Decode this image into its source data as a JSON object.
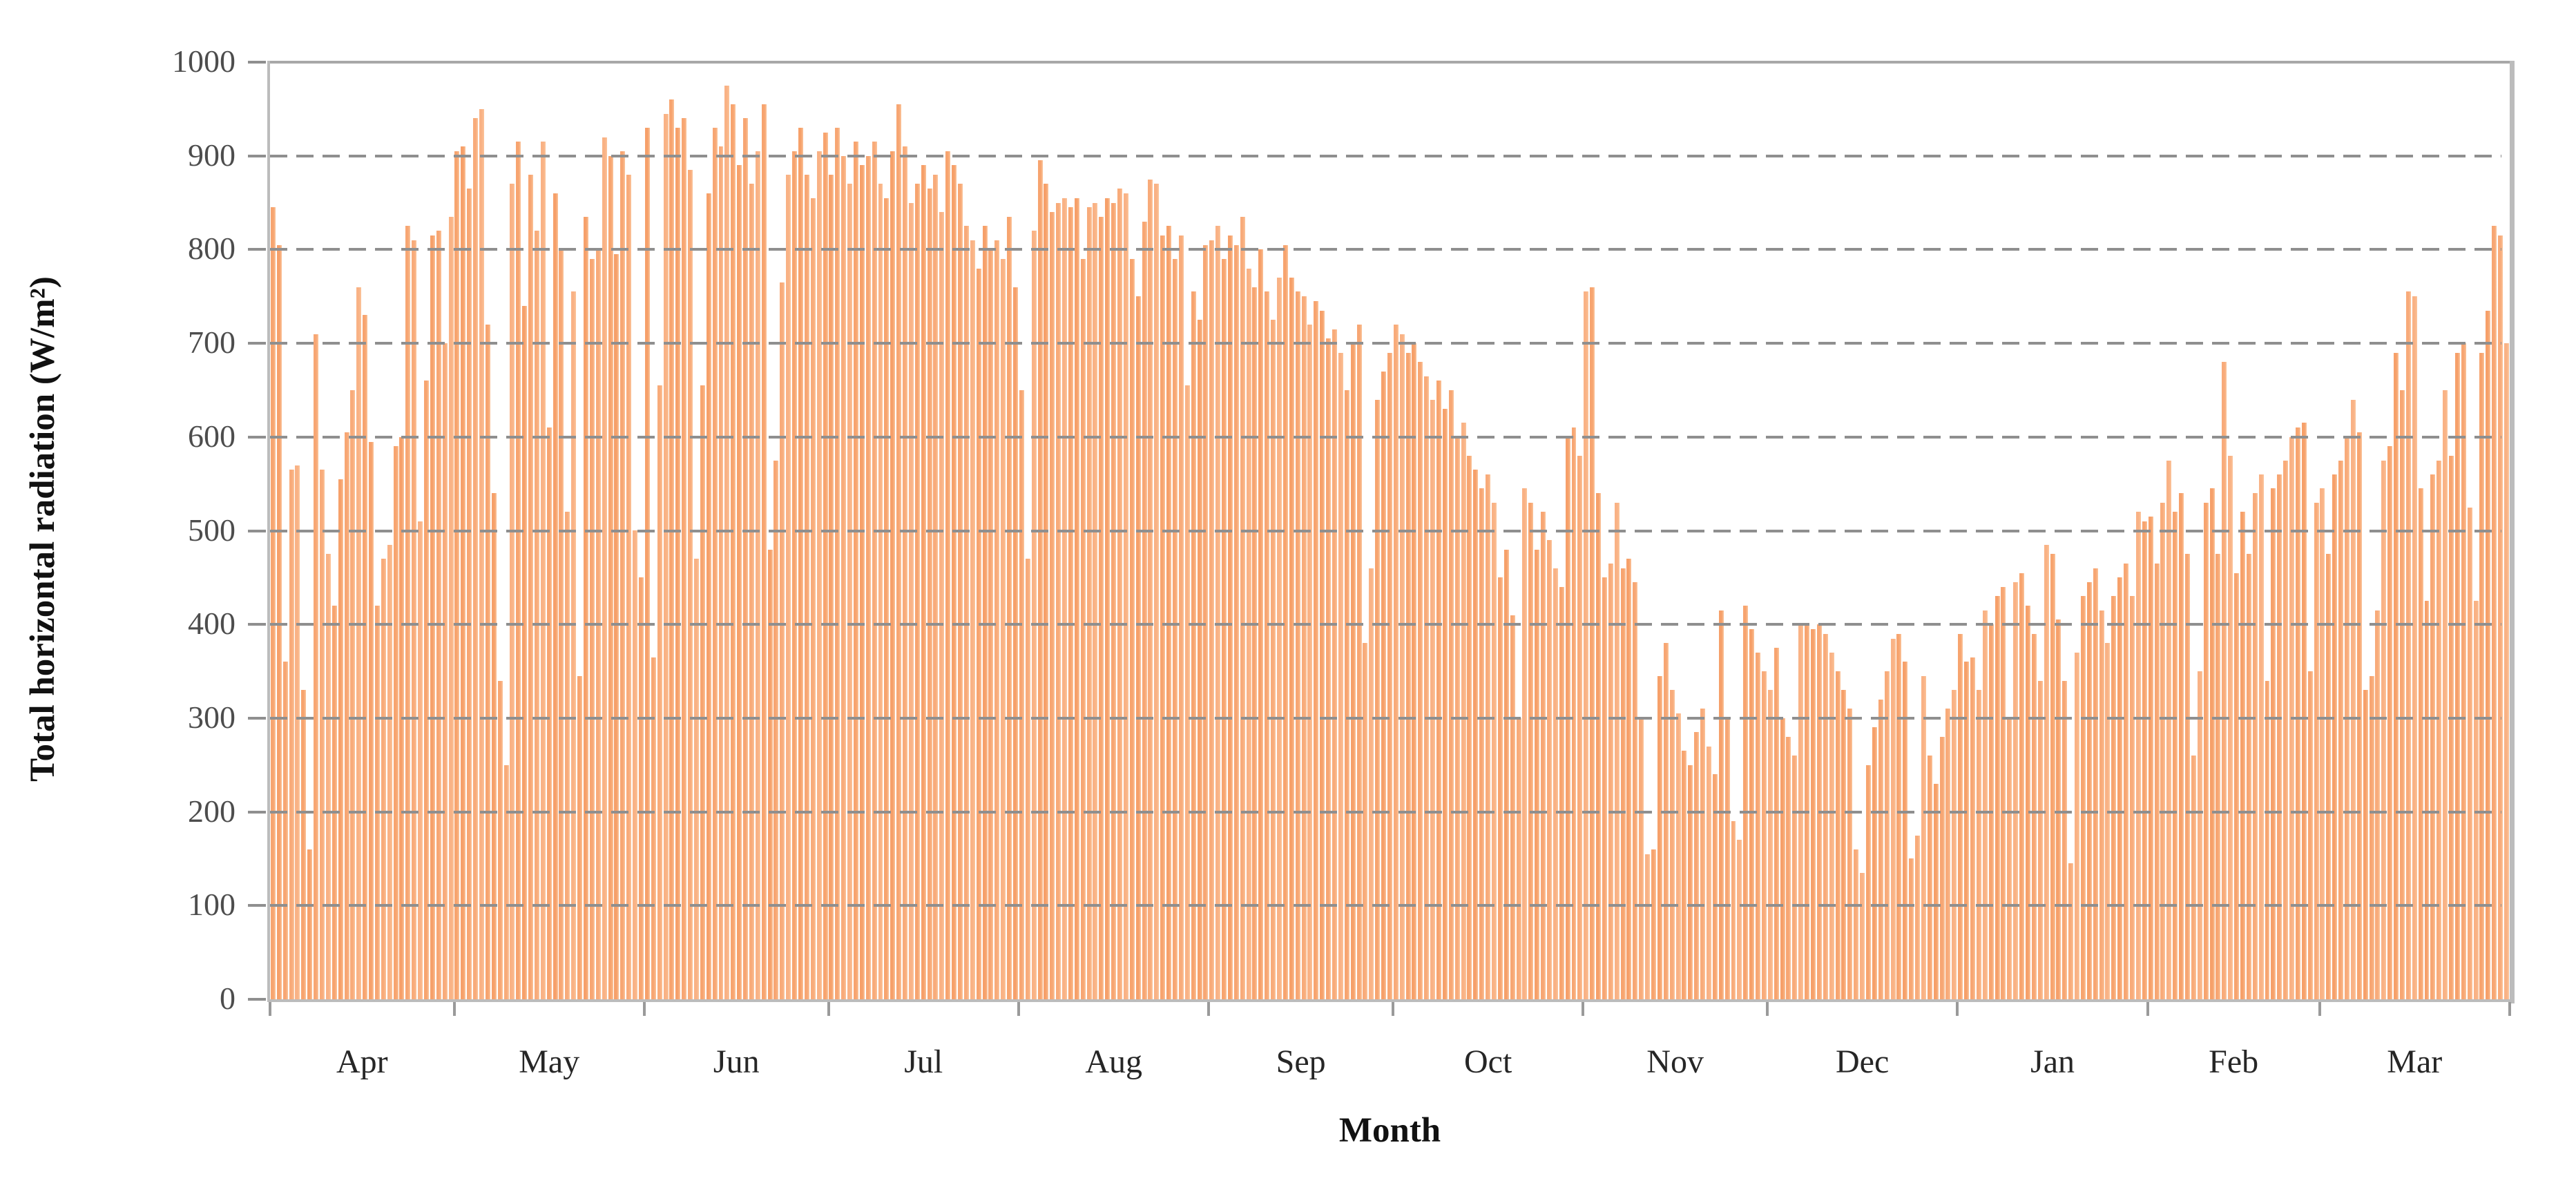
{
  "chart_data": {
    "type": "bar",
    "title": "",
    "xlabel": "Month",
    "ylabel": "Total horizontal radiation (W/m²)",
    "ylim": [
      0,
      1000
    ],
    "y_ticks": [
      0,
      100,
      200,
      300,
      400,
      500,
      600,
      700,
      800,
      900,
      1000
    ],
    "grid": "horizontal-dashed-overlay",
    "legend_position": "none",
    "bar_color": "#f7a470",
    "bar_color_light": "#fbc49b",
    "axis_color": "#bcbcbc",
    "grid_color": "#8f8f8f",
    "months": [
      {
        "label": "Apr",
        "days": 30
      },
      {
        "label": "May",
        "days": 31
      },
      {
        "label": "Jun",
        "days": 30
      },
      {
        "label": "Jul",
        "days": 31
      },
      {
        "label": "Aug",
        "days": 31
      },
      {
        "label": "Sep",
        "days": 30
      },
      {
        "label": "Oct",
        "days": 31
      },
      {
        "label": "Nov",
        "days": 30
      },
      {
        "label": "Dec",
        "days": 31
      },
      {
        "label": "Jan",
        "days": 31
      },
      {
        "label": "Feb",
        "days": 28
      },
      {
        "label": "Mar",
        "days": 31
      }
    ],
    "series_name": "Daily total horizontal radiation (W/m²)",
    "values": [
      845,
      805,
      360,
      565,
      570,
      330,
      160,
      710,
      565,
      475,
      420,
      555,
      605,
      650,
      760,
      730,
      595,
      420,
      470,
      485,
      590,
      600,
      825,
      810,
      510,
      660,
      815,
      820,
      700,
      835,
      905,
      910,
      865,
      940,
      950,
      720,
      540,
      340,
      250,
      870,
      915,
      740,
      880,
      820,
      915,
      610,
      860,
      800,
      520,
      755,
      345,
      835,
      790,
      800,
      920,
      900,
      795,
      905,
      880,
      500,
      450,
      930,
      365,
      655,
      945,
      960,
      930,
      940,
      885,
      470,
      655,
      860,
      930,
      910,
      975,
      955,
      890,
      940,
      870,
      905,
      955,
      480,
      575,
      765,
      880,
      905,
      930,
      880,
      855,
      905,
      925,
      880,
      930,
      900,
      870,
      915,
      890,
      900,
      915,
      870,
      855,
      905,
      955,
      910,
      850,
      870,
      890,
      865,
      880,
      840,
      905,
      890,
      870,
      825,
      810,
      780,
      825,
      800,
      810,
      790,
      835,
      760,
      650,
      470,
      820,
      895,
      870,
      840,
      850,
      855,
      845,
      855,
      790,
      845,
      850,
      835,
      855,
      850,
      865,
      860,
      790,
      750,
      830,
      875,
      870,
      815,
      825,
      790,
      815,
      655,
      755,
      725,
      805,
      810,
      825,
      790,
      815,
      805,
      835,
      780,
      760,
      800,
      755,
      725,
      770,
      805,
      770,
      755,
      750,
      720,
      745,
      735,
      705,
      715,
      690,
      650,
      700,
      720,
      380,
      460,
      640,
      670,
      690,
      720,
      710,
      690,
      700,
      680,
      665,
      640,
      660,
      630,
      650,
      600,
      615,
      580,
      565,
      545,
      560,
      530,
      450,
      480,
      410,
      300,
      545,
      530,
      480,
      520,
      490,
      460,
      440,
      600,
      610,
      580,
      755,
      760,
      540,
      450,
      465,
      530,
      460,
      470,
      445,
      300,
      155,
      160,
      345,
      380,
      330,
      305,
      265,
      250,
      285,
      310,
      270,
      240,
      415,
      300,
      190,
      170,
      420,
      395,
      370,
      350,
      330,
      375,
      300,
      280,
      260,
      400,
      400,
      395,
      400,
      390,
      370,
      350,
      330,
      310,
      160,
      135,
      250,
      290,
      320,
      350,
      385,
      390,
      360,
      150,
      175,
      345,
      260,
      230,
      280,
      310,
      330,
      390,
      360,
      365,
      330,
      415,
      400,
      430,
      440,
      300,
      445,
      455,
      420,
      390,
      340,
      485,
      475,
      405,
      340,
      145,
      370,
      430,
      445,
      460,
      415,
      380,
      430,
      450,
      465,
      430,
      520,
      510,
      515,
      465,
      530,
      575,
      520,
      540,
      475,
      260,
      350,
      530,
      545,
      475,
      680,
      580,
      455,
      520,
      475,
      540,
      560,
      340,
      545,
      560,
      575,
      600,
      610,
      615,
      350,
      530,
      545,
      475,
      560,
      575,
      600,
      640,
      605,
      330,
      345,
      415,
      575,
      590,
      690,
      650,
      755,
      750,
      545,
      425,
      560,
      575,
      650,
      580,
      690,
      700,
      525,
      425,
      690,
      735,
      825,
      815,
      700
    ]
  }
}
